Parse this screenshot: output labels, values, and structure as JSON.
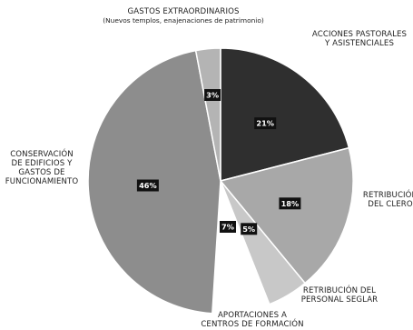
{
  "chart_data": {
    "type": "pie",
    "title": "",
    "slices": [
      {
        "label_lines": [
          "ACCIONES PASTORALES",
          "Y ASISTENCIALES"
        ],
        "value": 21,
        "value_label": "21%",
        "color": "#2f2f2f"
      },
      {
        "label_lines": [
          "RETRIBUCIÓN",
          "DEL CLERO"
        ],
        "value": 18,
        "value_label": "18%",
        "color": "#a8a8a8"
      },
      {
        "label_lines": [
          "RETRIBUCIÓN DEL",
          "PERSONAL SEGLAR"
        ],
        "value": 5,
        "value_label": "5%",
        "color": "#c8c8c8"
      },
      {
        "label_lines": [
          "APORTACIONES A",
          "CENTROS DE FORMACIÓN"
        ],
        "value": 7,
        "value_label": "7%",
        "color": "#ffffff"
      },
      {
        "label_lines": [
          "CONSERVACIÓN",
          "DE EDIFICIOS Y",
          "GASTOS DE",
          "FUNCIONAMIENTO"
        ],
        "value": 46,
        "value_label": "46%",
        "color": "#8d8d8d"
      },
      {
        "label_lines": [
          "GASTOS EXTRAORDINARIOS"
        ],
        "sub_label": "(Nuevos templos, enajenaciones de patrimonio)",
        "value": 3,
        "value_label": "3%",
        "color": "#b4b4b4"
      }
    ]
  }
}
